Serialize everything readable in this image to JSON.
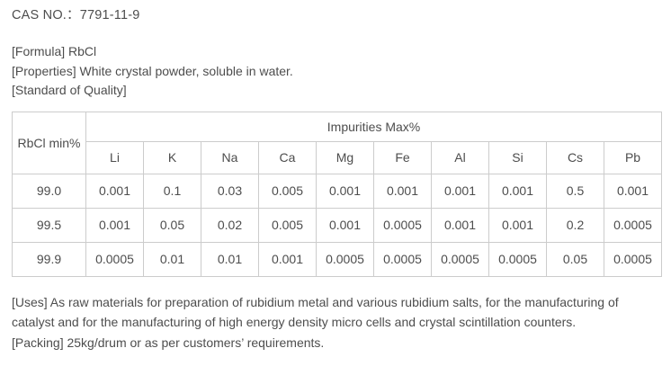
{
  "document": {
    "cas_line": "CAS NO.：7791-11-9",
    "formula_line": "[Formula] RbCl",
    "properties_line": "[Properties] White crystal powder, soluble in water.",
    "standard_line": "[Standard of Quality]",
    "uses_line": "[Uses] As raw materials for preparation of rubidium metal and various rubidium salts, for the manufacturing of catalyst and for the manufacturing of high energy density micro cells and crystal scintillation counters.",
    "packing_line": "[Packing] 25kg/drum or as per customers’ requirements."
  },
  "table": {
    "corner_header": "RbCl min%",
    "group_header": "Impurities Max%",
    "columns": [
      "Li",
      "K",
      "Na",
      "Ca",
      "Mg",
      "Fe",
      "Al",
      "Si",
      "Cs",
      "Pb"
    ],
    "rows": [
      {
        "rbcl": "99.0",
        "values": [
          "0.001",
          "0.1",
          "0.03",
          "0.005",
          "0.001",
          "0.001",
          "0.001",
          "0.001",
          "0.5",
          "0.001"
        ]
      },
      {
        "rbcl": "99.5",
        "values": [
          "0.001",
          "0.05",
          "0.02",
          "0.005",
          "0.001",
          "0.0005",
          "0.001",
          "0.001",
          "0.2",
          "0.0005"
        ]
      },
      {
        "rbcl": "99.9",
        "values": [
          "0.0005",
          "0.01",
          "0.01",
          "0.001",
          "0.0005",
          "0.0005",
          "0.0005",
          "0.0005",
          "0.05",
          "0.0005"
        ]
      }
    ]
  },
  "colors": {
    "text": "#4d4d4d",
    "border": "#cccccc",
    "background": "#ffffff"
  }
}
